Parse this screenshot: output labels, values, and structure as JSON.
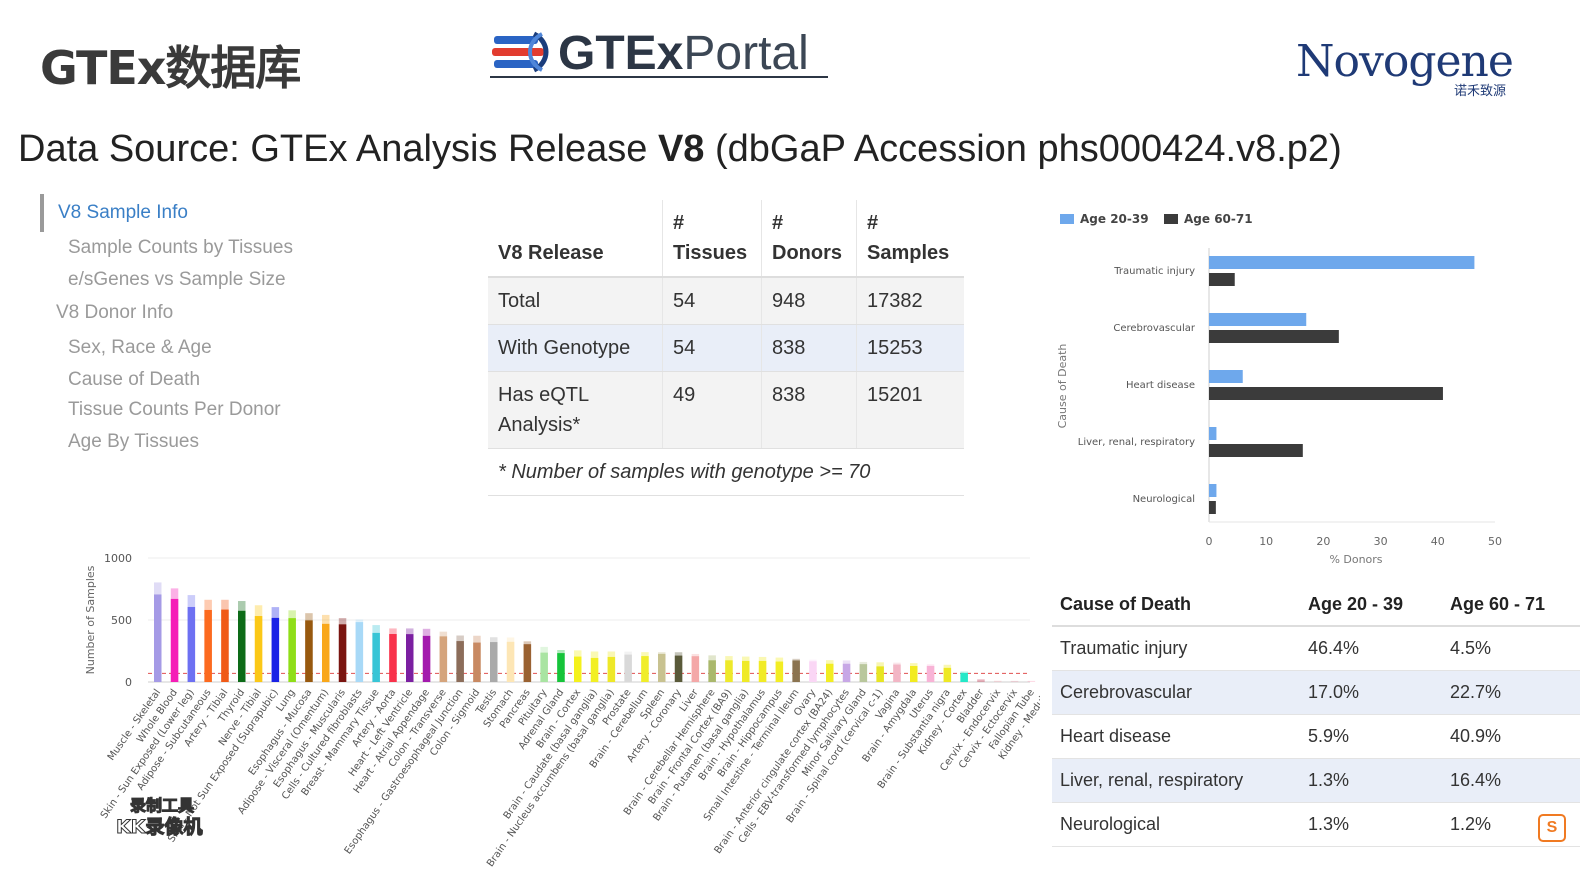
{
  "header": {
    "title_cn": "GTEx数据库",
    "portal_logo_bold": "GTEx",
    "portal_logo_light": "Portal",
    "company_logo": "Novogene",
    "company_logo_cn": "诺禾致源"
  },
  "data_source": {
    "prefix": "Data Source: GTEx Analysis Release ",
    "version": "V8",
    "suffix": " (dbGaP Accession phs000424.v8.p2)"
  },
  "nav": {
    "items": [
      {
        "label": "V8 Sample Info",
        "active": true
      },
      {
        "label": "Sample Counts by Tissues"
      },
      {
        "label": "e/sGenes vs Sample Size"
      },
      {
        "label": "V8 Donor Info"
      },
      {
        "label": "Sex, Race & Age"
      },
      {
        "label": "Cause of Death"
      },
      {
        "label": "Tissue Counts Per Donor"
      },
      {
        "label": "Age By Tissues"
      }
    ]
  },
  "release_table": {
    "headers": [
      "V8 Release",
      "#",
      "Tissues",
      "#",
      "Donors",
      "#",
      "Samples"
    ],
    "rows": [
      [
        "Total",
        "54",
        "948",
        "17382"
      ],
      [
        "With Genotype",
        "54",
        "838",
        "15253"
      ],
      [
        "Has eQTL Analysis*",
        "49",
        "838",
        "15201"
      ]
    ],
    "note": "* Number of samples with genotype >= 70"
  },
  "cause_chart": {
    "legend": [
      "Age 20-39",
      "Age 60-71"
    ],
    "ylabel": "Cause of Death",
    "xlabel": "% Donors",
    "xticks": [
      "0",
      "10",
      "20",
      "30",
      "40",
      "50"
    ],
    "colors": {
      "young": "#6ea8ec",
      "old": "#3b3b3b"
    }
  },
  "cause_table": {
    "headers": [
      "Cause of Death",
      "Age 20 - 39",
      "Age 60 - 71"
    ],
    "rows": [
      [
        "Traumatic injury",
        "46.4%",
        "4.5%"
      ],
      [
        "Cerebrovascular",
        "17.0%",
        "22.7%"
      ],
      [
        "Heart disease",
        "5.9%",
        "40.9%"
      ],
      [
        "Liver, renal, respiratory",
        "1.3%",
        "16.4%"
      ],
      [
        "Neurological",
        "1.3%",
        "1.2%"
      ]
    ]
  },
  "samples_chart": {
    "ylabel": "Number of Samples",
    "yticks": [
      "0",
      "500",
      "1000"
    ]
  },
  "watermark": {
    "line1": "录制工具",
    "line2": "KK录像机"
  },
  "chart_data": [
    {
      "type": "bar",
      "orientation": "horizontal",
      "categories": [
        "Traumatic injury",
        "Cerebrovascular",
        "Heart disease",
        "Liver, renal, respiratory",
        "Neurological"
      ],
      "series": [
        {
          "name": "Age 20-39",
          "values": [
            46.4,
            17.0,
            5.9,
            1.3,
            1.3
          ]
        },
        {
          "name": "Age 60-71",
          "values": [
            4.5,
            22.7,
            40.9,
            16.4,
            1.2
          ]
        }
      ],
      "ylabel": "Cause of Death",
      "xlabel": "% Donors",
      "xlim": [
        0,
        50
      ],
      "legend": "top-left"
    },
    {
      "type": "bar",
      "categories": [
        "Muscle - Skeletal",
        "Whole Blood",
        "Skin - Sun Exposed (Lower leg)",
        "Adipose - Subcutaneous",
        "Artery - Tibial",
        "Thyroid",
        "Nerve - Tibial",
        "Skin - Not Sun Exposed (Suprapubic)",
        "Lung",
        "Esophagus - Mucosa",
        "Adipose - Visceral (Omentum)",
        "Esophagus - Muscularis",
        "Cells - Cultured fibroblasts",
        "Breast - Mammary Tissue",
        "Artery - Aorta",
        "Heart - Left Ventricle",
        "Heart - Atrial Appendage",
        "Colon - Transverse",
        "Esophagus - Gastroesophageal Junction",
        "Colon - Sigmoid",
        "Testis",
        "Stomach",
        "Pancreas",
        "Pituitary",
        "Adrenal Gland",
        "Brain - Cortex",
        "Brain - Caudate (basal ganglia)",
        "Brain - Nucleus accumbens (basal ganglia)",
        "Prostate",
        "Brain - Cerebellum",
        "Spleen",
        "Artery - Coronary",
        "Liver",
        "Brain - Cerebellar Hemisphere",
        "Brain - Frontal Cortex (BA9)",
        "Brain - Putamen (basal ganglia)",
        "Brain - Hypothalamus",
        "Brain - Hippocampus",
        "Small Intestine - Terminal Ileum",
        "Ovary",
        "Brain - Anterior cingulate cortex (BA24)",
        "Cells - EBV-transformed lymphocytes",
        "Minor Salivary Gland",
        "Brain - Spinal cord (cervical c-1)",
        "Vagina",
        "Brain - Amygdala",
        "Uterus",
        "Brain - Substantia nigra",
        "Kidney - Cortex",
        "Bladder",
        "Cervix - Endocervix",
        "Cervix - Ectocervix",
        "Fallopian Tube",
        "Kidney - Medulla"
      ],
      "values": [
        803,
        755,
        701,
        663,
        663,
        653,
        619,
        604,
        578,
        555,
        541,
        515,
        504,
        459,
        432,
        432,
        429,
        406,
        375,
        373,
        361,
        359,
        328,
        283,
        258,
        255,
        246,
        246,
        245,
        241,
        241,
        240,
        226,
        215,
        209,
        205,
        202,
        197,
        187,
        180,
        176,
        174,
        162,
        159,
        156,
        152,
        142,
        139,
        85,
        21,
        10,
        9,
        9,
        4
      ],
      "values_with_genotype": [
        706,
        670,
        605,
        581,
        584,
        574,
        532,
        517,
        515,
        497,
        469,
        465,
        483,
        396,
        387,
        386,
        372,
        368,
        330,
        318,
        322,
        324,
        305,
        237,
        233,
        205,
        194,
        202,
        221,
        209,
        227,
        213,
        208,
        175,
        175,
        170,
        170,
        165,
        174,
        167,
        147,
        147,
        144,
        126,
        141,
        129,
        129,
        114,
        73,
        0,
        0,
        0,
        0,
        0
      ],
      "ylabel": "Number of Samples",
      "ylim": [
        0,
        1000
      ],
      "colors": [
        "#a59ae6",
        "#f51eb7",
        "#6d70f2",
        "#fc6a1f",
        "#f05a17",
        "#0d6b18",
        "#fbc817",
        "#1a22e6",
        "#8fde18",
        "#98590f",
        "#f9a71a",
        "#7a1510",
        "#a8d9f7",
        "#38c5d6",
        "#f8324b",
        "#7b1fa1",
        "#a31aad",
        "#d5a47c",
        "#8c6d5a",
        "#c88962",
        "#aaaaaa",
        "#fde6b5",
        "#9a6232",
        "#a9e4a2",
        "#16c43a",
        "#f4f11c",
        "#f2ef24",
        "#eee828",
        "#d9d9d9",
        "#f0ed2a",
        "#c8c290",
        "#5a5a3a",
        "#f4a8a8",
        "#aab86c",
        "#eee92a",
        "#efea27",
        "#f1eb26",
        "#f3ed23",
        "#8b7450",
        "#fad6f5",
        "#f2ed22",
        "#c7a7e6",
        "#b9c79c",
        "#e7e522",
        "#f2b6c5",
        "#f2eb20",
        "#f8b3d6",
        "#eee824",
        "#25e8c8",
        "#b61a3a",
        "#f5a6b0",
        "#e99aa8",
        "#fa9ab8",
        "#d79ab0"
      ]
    }
  ]
}
